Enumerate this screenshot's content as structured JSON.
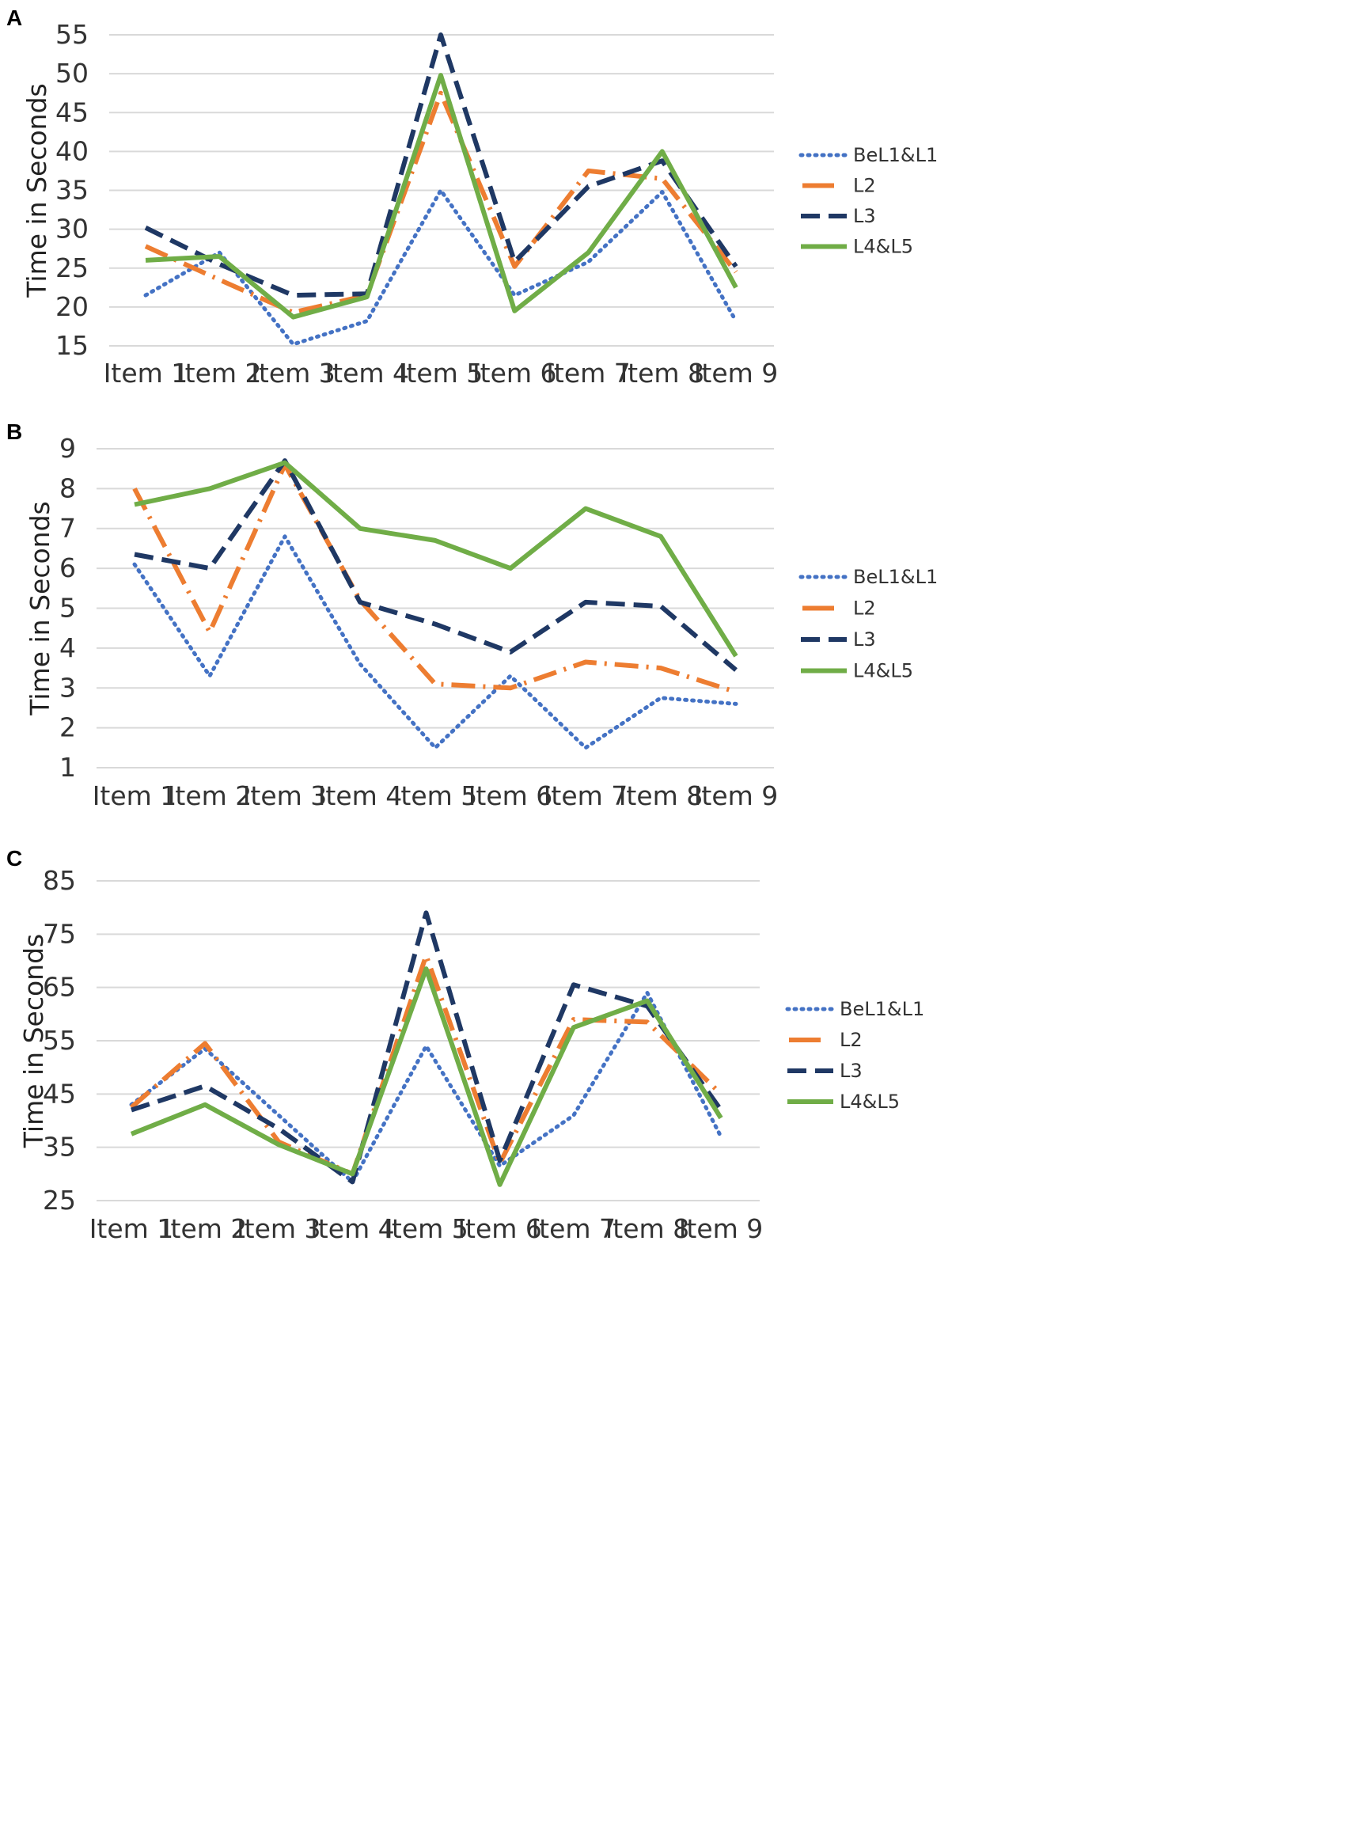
{
  "chart_data": [
    {
      "panel": "A",
      "type": "line",
      "title": "",
      "xlabel": "",
      "ylabel": "Time in Seconds",
      "ylim": [
        15,
        55
      ],
      "yticks": [
        15,
        20,
        25,
        30,
        35,
        40,
        45,
        50,
        55
      ],
      "grid": true,
      "legend_position": "right",
      "categories": [
        "Item 1",
        "Item 2",
        "Item 3",
        "Item 4",
        "Item 5",
        "Item 6",
        "Item 7",
        "Item 8",
        "Item 9"
      ],
      "series": [
        {
          "name": "BeL1&L1",
          "style": "dotted",
          "color": "#4472c4",
          "values": [
            21.5,
            27,
            15.2,
            18.2,
            35,
            21.5,
            25.8,
            34.8,
            18.2
          ]
        },
        {
          "name": "L2",
          "style": "dashdot",
          "color": "#ed7d31",
          "values": [
            27.8,
            23.5,
            19.3,
            21.5,
            47.5,
            25.2,
            37.5,
            36.5,
            24.5
          ]
        },
        {
          "name": "L3",
          "style": "dashed",
          "color": "#1f3864",
          "values": [
            30.2,
            25.5,
            21.5,
            21.7,
            55,
            25.8,
            35.5,
            38.8,
            25.2
          ]
        },
        {
          "name": "L4&L5",
          "style": "solid",
          "color": "#70ad47",
          "values": [
            26,
            26.5,
            18.7,
            21.3,
            49.8,
            19.5,
            27,
            40,
            22.5
          ]
        }
      ]
    },
    {
      "panel": "B",
      "type": "line",
      "title": "",
      "xlabel": "",
      "ylabel": "Time in Seconds",
      "ylim": [
        1,
        9
      ],
      "yticks": [
        1,
        2,
        3,
        4,
        5,
        6,
        7,
        8,
        9
      ],
      "grid": true,
      "legend_position": "right",
      "categories": [
        "Item 1",
        "Item 2",
        "Item 3",
        "Item 4",
        "Item 5",
        "Item 6",
        "Item 7",
        "Item 8",
        "Item 9"
      ],
      "series": [
        {
          "name": "BeL1&L1",
          "style": "dotted",
          "color": "#4472c4",
          "values": [
            6.1,
            3.3,
            6.8,
            3.6,
            1.5,
            3.3,
            1.5,
            2.75,
            2.6
          ]
        },
        {
          "name": "L2",
          "style": "dashdot",
          "color": "#ed7d31",
          "values": [
            8,
            4.4,
            8.6,
            5.2,
            3.1,
            3,
            3.65,
            3.5,
            2.9
          ]
        },
        {
          "name": "L3",
          "style": "dashed",
          "color": "#1f3864",
          "values": [
            6.35,
            6,
            8.7,
            5.15,
            4.6,
            3.9,
            5.15,
            5.05,
            3.45
          ]
        },
        {
          "name": "L4&L5",
          "style": "solid",
          "color": "#70ad47",
          "values": [
            7.6,
            8,
            8.65,
            7,
            6.7,
            6,
            7.5,
            6.8,
            3.8
          ]
        }
      ]
    },
    {
      "panel": "C",
      "type": "line",
      "title": "",
      "xlabel": "",
      "ylabel": "Time in Seconds",
      "ylim": [
        25,
        85
      ],
      "yticks": [
        25,
        35,
        45,
        55,
        65,
        75,
        85
      ],
      "grid": true,
      "legend_position": "right",
      "categories": [
        "Item 1",
        "Item 2",
        "Item 3",
        "Item 4",
        "Item 5",
        "Item 6",
        "Item 7",
        "Item 8",
        "Item 9"
      ],
      "series": [
        {
          "name": "BeL1&L1",
          "style": "dotted",
          "color": "#4472c4",
          "values": [
            43,
            53.5,
            41,
            28.5,
            54,
            31.5,
            41,
            64,
            37
          ]
        },
        {
          "name": "L2",
          "style": "dashdot",
          "color": "#ed7d31",
          "values": [
            42.5,
            54.5,
            36,
            30,
            71,
            32,
            59,
            58.5,
            45
          ]
        },
        {
          "name": "L3",
          "style": "dashed",
          "color": "#1f3864",
          "values": [
            42,
            46.5,
            38.5,
            28.5,
            79,
            32.5,
            65.5,
            61.5,
            42
          ]
        },
        {
          "name": "L4&L5",
          "style": "solid",
          "color": "#70ad47",
          "values": [
            37.5,
            43,
            35.5,
            30,
            68.5,
            28,
            57.5,
            62.5,
            40.5
          ]
        }
      ]
    }
  ]
}
